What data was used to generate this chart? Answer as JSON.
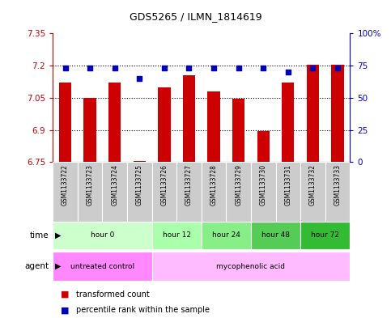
{
  "title": "GDS5265 / ILMN_1814619",
  "samples": [
    "GSM1133722",
    "GSM1133723",
    "GSM1133724",
    "GSM1133725",
    "GSM1133726",
    "GSM1133727",
    "GSM1133728",
    "GSM1133729",
    "GSM1133730",
    "GSM1133731",
    "GSM1133732",
    "GSM1133733"
  ],
  "bar_values": [
    7.12,
    7.05,
    7.12,
    6.757,
    7.1,
    7.155,
    7.08,
    7.045,
    6.895,
    7.12,
    7.205,
    7.205
  ],
  "dot_values": [
    73,
    73,
    73,
    65,
    73,
    73,
    73,
    73,
    73,
    70,
    73,
    73
  ],
  "ylim_left": [
    6.75,
    7.35
  ],
  "ylim_right": [
    0,
    100
  ],
  "yticks_left": [
    6.75,
    6.9,
    7.05,
    7.2,
    7.35
  ],
  "ytick_labels_left": [
    "6.75",
    "6.9",
    "7.05",
    "7.2",
    "7.35"
  ],
  "yticks_right": [
    0,
    25,
    50,
    75,
    100
  ],
  "ytick_labels_right": [
    "0",
    "25",
    "50",
    "75",
    "100%"
  ],
  "hlines": [
    7.2,
    7.05,
    6.9
  ],
  "bar_color": "#cc0000",
  "dot_color": "#0000bb",
  "bar_bottom": 6.75,
  "time_groups": [
    {
      "label": "hour 0",
      "start": 0,
      "end": 3,
      "color": "#ccffcc"
    },
    {
      "label": "hour 12",
      "start": 4,
      "end": 5,
      "color": "#aaffaa"
    },
    {
      "label": "hour 24",
      "start": 6,
      "end": 7,
      "color": "#88ee88"
    },
    {
      "label": "hour 48",
      "start": 8,
      "end": 9,
      "color": "#55cc55"
    },
    {
      "label": "hour 72",
      "start": 10,
      "end": 11,
      "color": "#33bb33"
    }
  ],
  "agent_groups": [
    {
      "label": "untreated control",
      "start": 0,
      "end": 3,
      "color": "#ff88ff"
    },
    {
      "label": "mycophenolic acid",
      "start": 4,
      "end": 11,
      "color": "#ffbbff"
    }
  ],
  "legend_red_label": "transformed count",
  "legend_blue_label": "percentile rank within the sample",
  "background_color": "#ffffff",
  "sample_label_bg": "#cccccc",
  "left_axis_color": "#cc0000",
  "right_axis_color": "#0000bb"
}
